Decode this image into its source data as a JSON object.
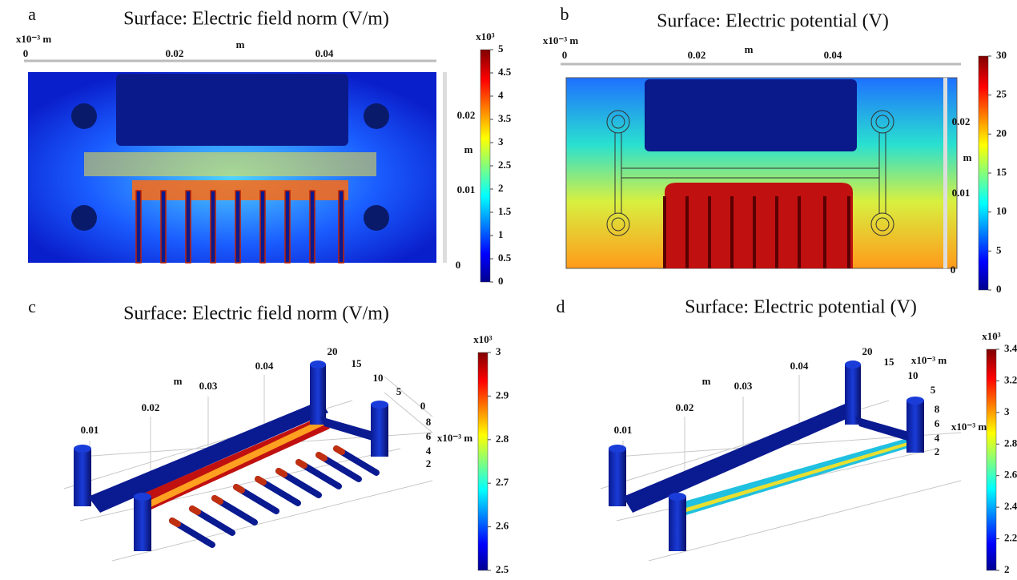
{
  "panels": [
    {
      "label": "a",
      "title": "Surface: Electric field norm (V/m)",
      "axis_labels": [
        "x10⁻³ m",
        "0",
        "m",
        "0.02",
        "0.04",
        "0.02",
        "m",
        "0.01",
        "0"
      ],
      "colorbar": {
        "multiplier": "x10³",
        "ticks": [
          "5",
          "4.5",
          "4",
          "3.5",
          "3",
          "2.5",
          "2",
          "1.5",
          "1",
          "0.5",
          "0"
        ]
      }
    },
    {
      "label": "b",
      "title": "Surface: Electric potential (V)",
      "axis_labels": [
        "x10⁻³ m",
        "0",
        "0.02",
        "m",
        "0.04",
        "0.02",
        "m",
        "0.01",
        "0"
      ],
      "colorbar": {
        "ticks": [
          "30",
          "25",
          "20",
          "15",
          "10",
          "5",
          "0"
        ]
      }
    },
    {
      "label": "c",
      "title": "Surface: Electric field norm (V/m)",
      "axis_labels": [
        "0.01",
        "0.02",
        "m",
        "0.03",
        "0.04",
        "20",
        "15",
        "10",
        "5",
        "0",
        "8",
        "6",
        "x10⁻³ m",
        "4",
        "2"
      ],
      "colorbar": {
        "multiplier": "x10³",
        "ticks": [
          "3",
          "2.9",
          "2.8",
          "2.7",
          "2.6",
          "2.5"
        ]
      }
    },
    {
      "label": "d",
      "title": "Surface: Electric potential (V)",
      "axis_labels": [
        "0.01",
        "0.02",
        "m",
        "0.03",
        "0.04",
        "20",
        "15",
        "x10⁻³ m",
        "10",
        "5",
        "8",
        "6",
        "x10⁻³ m",
        "4",
        "2"
      ],
      "colorbar": {
        "multiplier": "x10³",
        "ticks": [
          "3.4",
          "3.2",
          "3",
          "2.8",
          "2.6",
          "2.4",
          "2.2",
          "2"
        ]
      }
    }
  ]
}
